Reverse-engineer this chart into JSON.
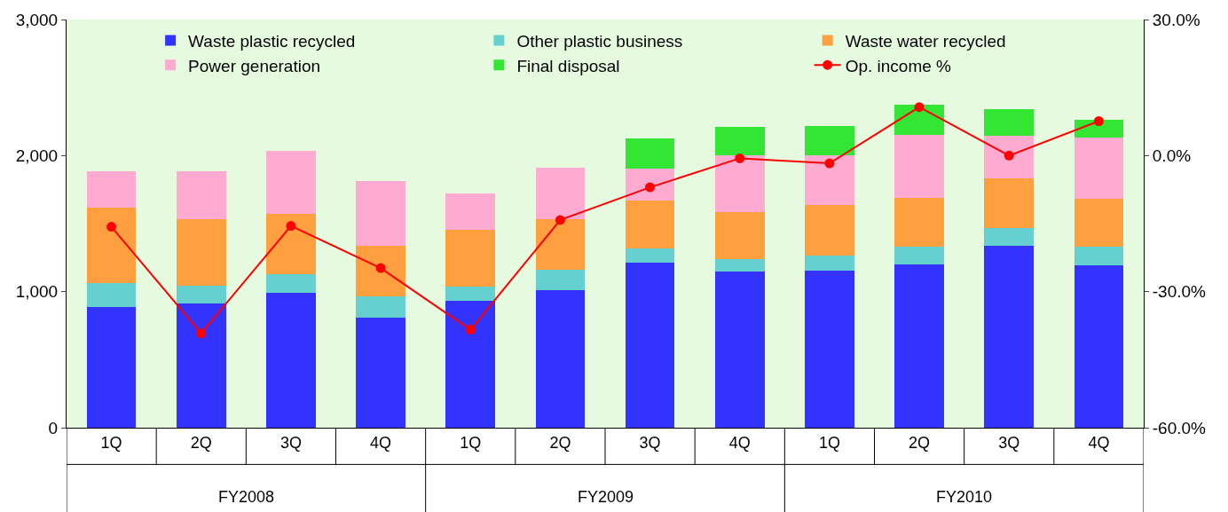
{
  "chart_data": {
    "type": "bar",
    "stacked": true,
    "categories": [
      "1Q",
      "2Q",
      "3Q",
      "4Q",
      "1Q",
      "2Q",
      "3Q",
      "4Q",
      "1Q",
      "2Q",
      "3Q",
      "4Q"
    ],
    "annotations": [
      "FY2008",
      "FY2009",
      "FY2010"
    ],
    "series": [
      {
        "name": "Waste plastic recycled",
        "color": "#3333ff",
        "values": [
          885,
          910,
          990,
          810,
          935,
          1010,
          1210,
          1145,
          1155,
          1200,
          1340,
          1195
        ]
      },
      {
        "name": "Other plastic business",
        "color": "#66d0d0",
        "values": [
          175,
          135,
          140,
          155,
          105,
          150,
          105,
          95,
          110,
          130,
          125,
          135
        ]
      },
      {
        "name": "Waste water recycled",
        "color": "#ffa040",
        "values": [
          555,
          485,
          440,
          375,
          415,
          375,
          355,
          345,
          375,
          360,
          365,
          355
        ]
      },
      {
        "name": "Power generation",
        "color": "#ffaad0",
        "values": [
          270,
          355,
          465,
          470,
          265,
          375,
          235,
          420,
          360,
          465,
          315,
          445
        ]
      },
      {
        "name": "Final disposal",
        "color": "#33e633",
        "values": [
          0,
          0,
          0,
          0,
          0,
          0,
          220,
          205,
          215,
          220,
          195,
          135
        ]
      },
      {
        "name": "Op. income %",
        "type": "line",
        "axis": "y2",
        "color": "#ff0000",
        "marker": "circle",
        "values": [
          -15.7,
          -39.2,
          -15.5,
          -24.8,
          -38.4,
          -14.2,
          -7.0,
          -0.6,
          -1.7,
          10.7,
          0.0,
          7.6
        ]
      }
    ],
    "ylim": [
      0,
      3000
    ],
    "yticks": [
      0,
      {
        "value": 1000,
        "label": "1,000"
      },
      {
        "value": 2000,
        "label": "2,000"
      },
      {
        "value": 3000,
        "label": "3,000"
      }
    ],
    "y2lim": [
      -60,
      30
    ],
    "y2ticks": [
      {
        "value": -60,
        "label": "-60.0%"
      },
      {
        "value": -30,
        "label": "-30.0%"
      },
      {
        "value": 0,
        "label": "0.0%"
      },
      {
        "value": 30,
        "label": "30.0%"
      }
    ],
    "grid": false,
    "legend": "top"
  }
}
